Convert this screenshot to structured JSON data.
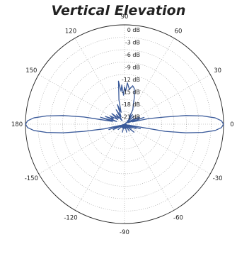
{
  "chart_data": {
    "type": "polar",
    "title": "Vertical Elevation",
    "angle_unit": "degrees",
    "angle_labels": [
      "0",
      "30",
      "60",
      "90",
      "120",
      "150",
      "180",
      "-150",
      "-120",
      "-90",
      "-60",
      "-30"
    ],
    "angle_values": [
      0,
      30,
      60,
      90,
      120,
      150,
      180,
      -150,
      -120,
      -90,
      -60,
      -30
    ],
    "radial_labels": [
      "0 dB",
      "-3 dB",
      "-6 dB",
      "-9 dB",
      "-12 dB",
      "-15 dB",
      "-18 dB",
      "-21 dB"
    ],
    "radial_values": [
      0,
      -3,
      -6,
      -9,
      -12,
      -15,
      -18,
      -21
    ],
    "radial_range": [
      -24,
      0
    ],
    "grid": true,
    "colors": {
      "pattern": "#3a5a9a",
      "grid": "#9a9a9a",
      "outer_circle": "#222222"
    },
    "series": [
      {
        "angle_deg": [
          -180,
          -178,
          -176,
          -174,
          -172,
          -170,
          -167,
          -164,
          -161,
          -158,
          -155,
          -150,
          -145,
          -140,
          -135,
          -130,
          -125,
          -120,
          -115,
          -110,
          -105,
          -100,
          -95,
          -90,
          -85,
          -80,
          -75,
          -70,
          -65,
          -60,
          -55,
          -50,
          -45,
          -40,
          -35,
          -30,
          -25,
          -22,
          -19,
          -16,
          -13,
          -10,
          -8,
          -6,
          -4,
          -2,
          0,
          2,
          4,
          6,
          8,
          10,
          13,
          16,
          19,
          22,
          25,
          30,
          35,
          40,
          45,
          50,
          55,
          60,
          65,
          70,
          75,
          78,
          82,
          86,
          88,
          90,
          92,
          94,
          96,
          98,
          100,
          103,
          106,
          110,
          115,
          120,
          125,
          130,
          135,
          140,
          145,
          150,
          155,
          158,
          161,
          164,
          167,
          170,
          172,
          174,
          176,
          178,
          180
        ],
        "db": [
          0,
          -0.5,
          -2,
          -5,
          -9,
          -14,
          -19,
          -23,
          -20,
          -24,
          -21,
          -23,
          -24,
          -22,
          -24,
          -23,
          -24,
          -24,
          -23,
          -24,
          -22,
          -24,
          -23,
          -24,
          -23,
          -24,
          -22,
          -24,
          -23,
          -24,
          -22,
          -24,
          -23,
          -21,
          -24,
          -22,
          -24,
          -21,
          -24,
          -20,
          -23,
          -14,
          -9,
          -5,
          -2,
          -0.5,
          0,
          -0.5,
          -2,
          -5,
          -9,
          -14,
          -18,
          -22,
          -19,
          -23,
          -20,
          -22,
          -24,
          -21,
          -23,
          -21,
          -22,
          -20,
          -19,
          -17,
          -15,
          -14.5,
          -15.5,
          -14,
          -16,
          -15,
          -17,
          -14.5,
          -16,
          -13.5,
          -16,
          -18,
          -21,
          -19,
          -22,
          -20,
          -23,
          -21,
          -22,
          -20,
          -22,
          -20,
          -21,
          -19,
          -22,
          -18,
          -21,
          -14,
          -9,
          -5,
          -2,
          -0.5,
          0
        ]
      }
    ]
  }
}
